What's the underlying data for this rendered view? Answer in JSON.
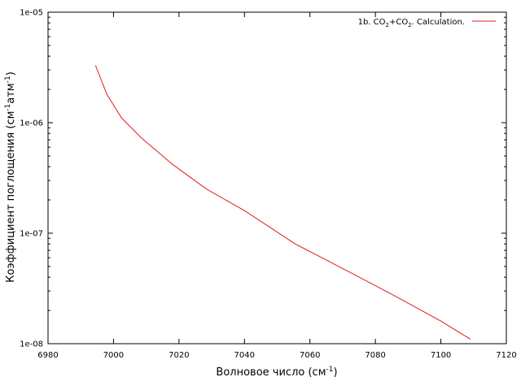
{
  "chart_data": {
    "type": "line",
    "xlabel": {
      "main": "Волновое число (см",
      "sup": "-1",
      "tail": ")"
    },
    "ylabel": {
      "a": "Коэффициент поглощения (см",
      "sup1": "-1",
      "b": "атм",
      "sup2": "-1",
      "c": ")"
    },
    "xlim": [
      6980,
      7120
    ],
    "ylim": [
      1e-08,
      1e-05
    ],
    "yscale": "log",
    "grid": false,
    "legend_position": "top-right",
    "x_ticks": [
      "6980",
      "7000",
      "7020",
      "7040",
      "7060",
      "7080",
      "7100",
      "7120"
    ],
    "y_ticks": [
      "1e-08",
      "1e-07",
      "1e-06",
      "1e-05"
    ],
    "series": [
      {
        "name_parts": [
          "1b. CO",
          "2",
          "+CO",
          "2",
          ". Calculation."
        ],
        "color": "#e41a1c",
        "x": [
          6994.5,
          6998,
          7002.5,
          7008.5,
          7018,
          7028.5,
          7040,
          7055.5,
          7070,
          7085,
          7100,
          7109
        ],
        "y": [
          3.3e-06,
          1.8e-06,
          1.1e-06,
          7.3e-07,
          4.2e-07,
          2.5e-07,
          1.6e-07,
          8e-08,
          4.8e-08,
          2.8e-08,
          1.6e-08,
          1.1e-08
        ]
      }
    ]
  }
}
